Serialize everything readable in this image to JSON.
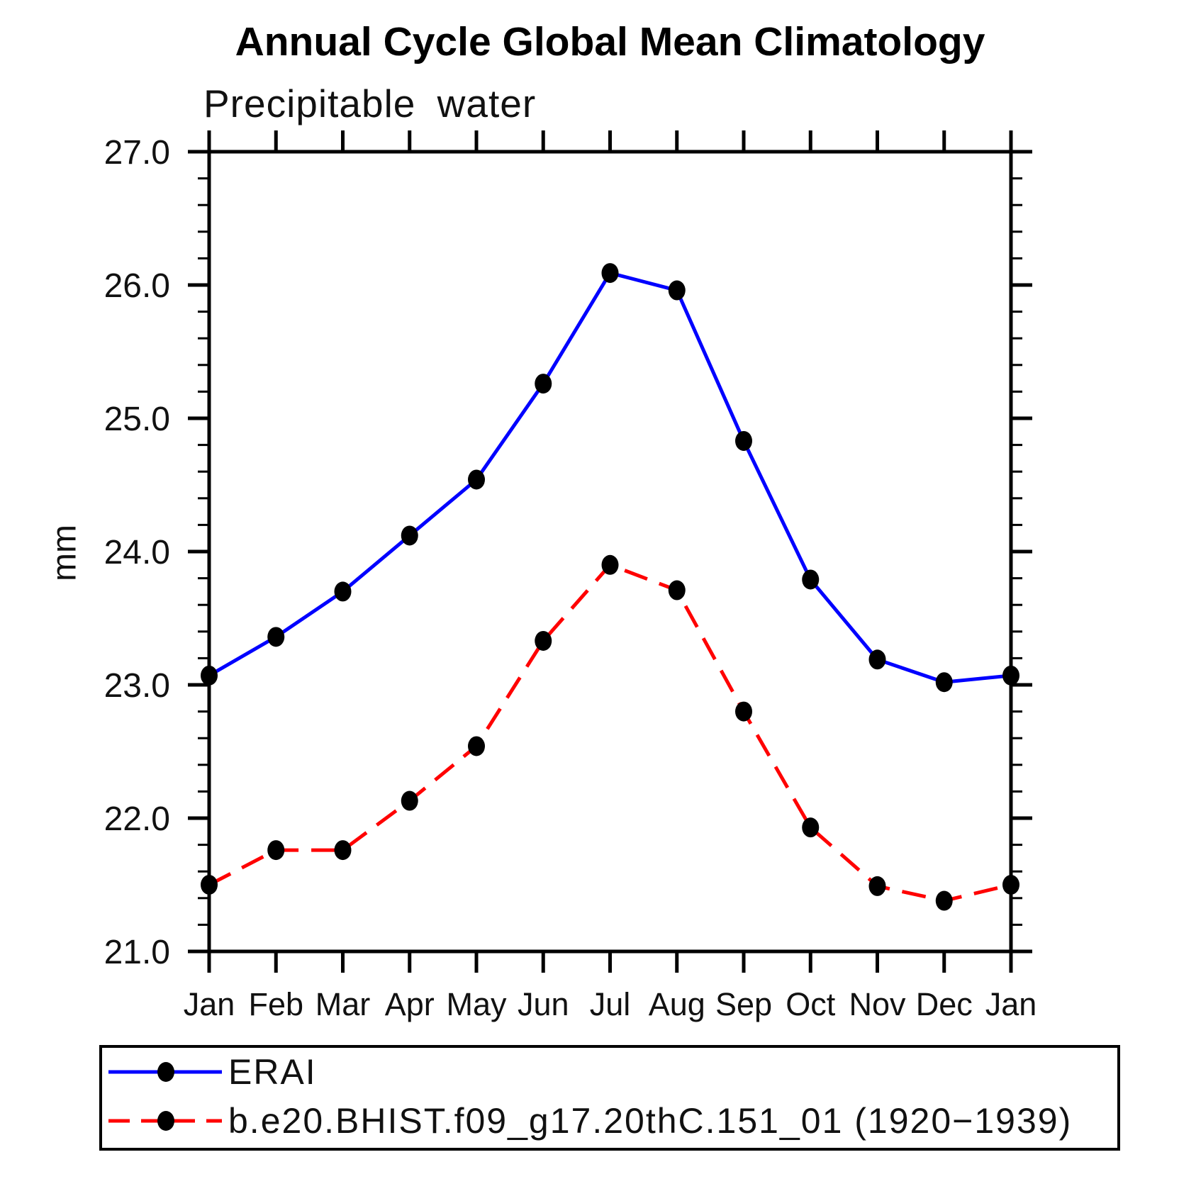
{
  "chart": {
    "title": "Annual Cycle Global Mean Climatology",
    "subtitle": "Precipitable water",
    "ylabel": "mm"
  },
  "chart_data": {
    "type": "line",
    "title": "Annual Cycle Global Mean Climatology",
    "subtitle": "Precipitable water",
    "xlabel": "",
    "ylabel": "mm",
    "x_tick_labels": [
      "Jan",
      "Feb",
      "Mar",
      "Apr",
      "May",
      "Jun",
      "Jul",
      "Aug",
      "Sep",
      "Oct",
      "Nov",
      "Dec",
      "Jan"
    ],
    "y_tick_values": [
      21.0,
      22.0,
      23.0,
      24.0,
      25.0,
      26.0,
      27.0
    ],
    "y_tick_labels": [
      "21.0",
      "22.0",
      "23.0",
      "24.0",
      "25.0",
      "26.0",
      "27.0"
    ],
    "ylim": [
      21.0,
      27.0
    ],
    "y_minor_step": 0.2,
    "grid": false,
    "legend_position": "bottom",
    "axis_color": "#000000",
    "marker_color": "#000000",
    "series": [
      {
        "name": "ERAI",
        "color": "#0000ff",
        "line_style": "solid",
        "marker": "filled-circle",
        "values": [
          23.07,
          23.36,
          23.7,
          24.12,
          24.54,
          25.26,
          26.09,
          25.96,
          24.83,
          23.79,
          23.19,
          23.02,
          23.07
        ]
      },
      {
        "name": "b.e20.BHIST.f09_g17.20thC.151_01 (1920−1939)",
        "color": "#ff0000",
        "line_style": "dashed",
        "marker": "filled-circle",
        "values": [
          21.5,
          21.76,
          21.76,
          22.13,
          22.54,
          23.33,
          23.9,
          23.71,
          22.8,
          21.93,
          21.49,
          21.38,
          21.5
        ]
      }
    ]
  }
}
